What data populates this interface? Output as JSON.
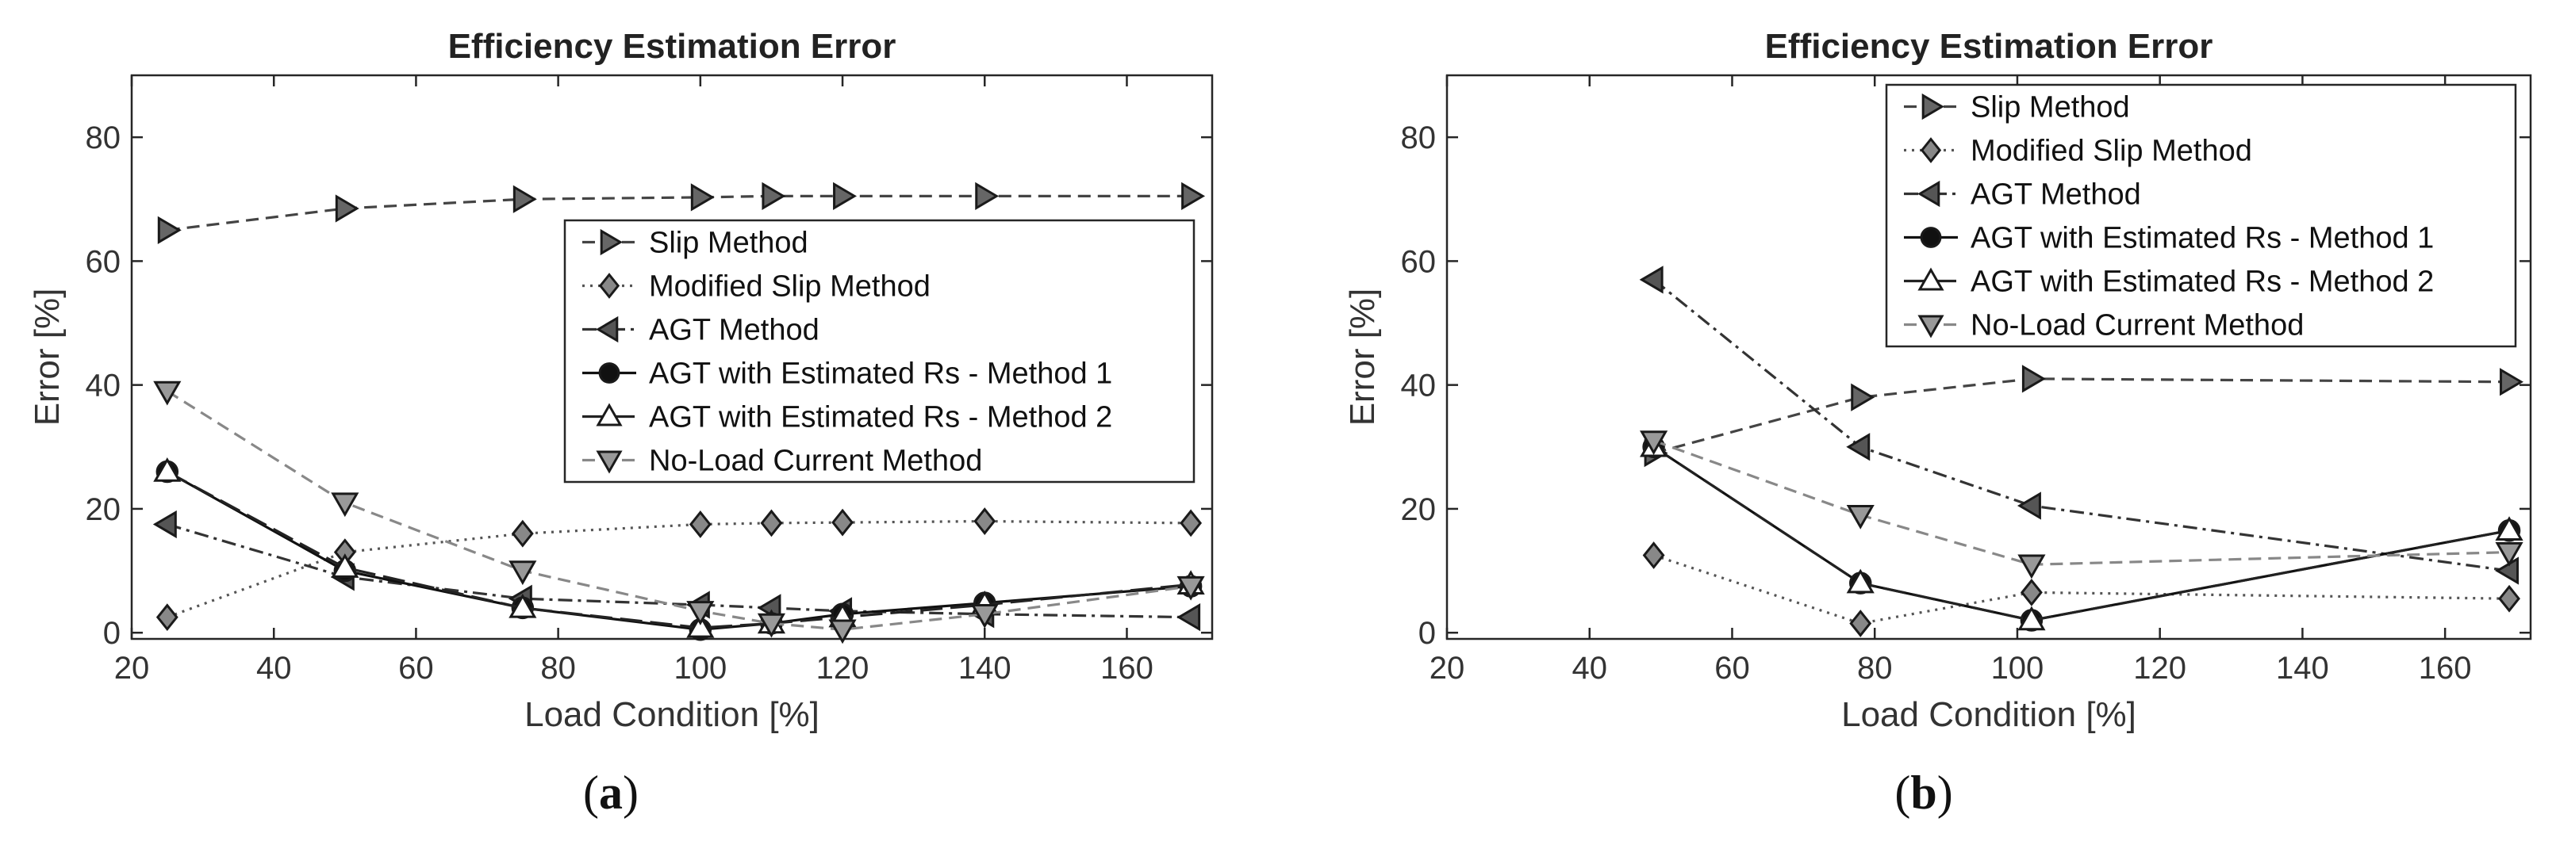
{
  "figure": {
    "captions": [
      "(a)",
      "(b)"
    ]
  },
  "chart_data": [
    {
      "type": "line",
      "title": "Efficiency Estimation Error",
      "xlabel": "Load Condition [%]",
      "ylabel": "Error [%]",
      "xlim": [
        20,
        172
      ],
      "ylim": [
        -1,
        90
      ],
      "xticks": [
        20,
        40,
        60,
        80,
        100,
        120,
        140,
        160
      ],
      "yticks": [
        0,
        20,
        40,
        60,
        80
      ],
      "grid": false,
      "legend_position": "center-right",
      "series": [
        {
          "name": "Slip Method",
          "style": {
            "dash": "dashed",
            "color": "#444444",
            "marker": "triangle-right",
            "marker_fill": "#666666"
          },
          "x": [
            25,
            50,
            75,
            100,
            110,
            120,
            140,
            169
          ],
          "y": [
            65,
            68.5,
            70,
            70.3,
            70.5,
            70.5,
            70.5,
            70.5
          ]
        },
        {
          "name": "Modified Slip Method",
          "style": {
            "dash": "dotted",
            "color": "#555555",
            "marker": "diamond",
            "marker_fill": "#888888"
          },
          "x": [
            25,
            50,
            75,
            100,
            110,
            120,
            140,
            169
          ],
          "y": [
            2.5,
            13,
            16,
            17.5,
            17.7,
            17.8,
            18,
            17.7
          ]
        },
        {
          "name": "AGT Method",
          "style": {
            "dash": "dashdot",
            "color": "#333333",
            "marker": "triangle-left",
            "marker_fill": "#555555"
          },
          "x": [
            25,
            50,
            75,
            100,
            110,
            120,
            140,
            169
          ],
          "y": [
            17.5,
            9,
            5.5,
            4.5,
            4,
            3.5,
            3,
            2.5
          ]
        },
        {
          "name": "AGT with Estimated Rs - Method 1",
          "style": {
            "dash": "solid",
            "color": "#111111",
            "marker": "circle",
            "marker_fill": "#111111"
          },
          "x": [
            25,
            50,
            75,
            100,
            110,
            120,
            140,
            169
          ],
          "y": [
            26,
            10,
            4,
            0.5,
            1.5,
            3,
            4.8,
            7.5
          ]
        },
        {
          "name": "AGT with Estimated Rs - Method 2",
          "style": {
            "dash": "longdash",
            "color": "#222222",
            "marker": "triangle-up",
            "marker_fill": "#ffffff"
          },
          "x": [
            25,
            50,
            75,
            100,
            110,
            120,
            140,
            169
          ],
          "y": [
            26,
            10.5,
            4,
            0.8,
            1.5,
            2.5,
            4.5,
            7.8
          ]
        },
        {
          "name": "No-Load Current Method",
          "style": {
            "dash": "dashed",
            "color": "#888888",
            "marker": "triangle-down",
            "marker_fill": "#999999"
          },
          "x": [
            25,
            50,
            75,
            100,
            110,
            120,
            140,
            169
          ],
          "y": [
            39,
            21,
            10,
            3.5,
            1.5,
            0.5,
            3,
            7.5
          ]
        }
      ]
    },
    {
      "type": "line",
      "title": "Efficiency Estimation Error",
      "xlabel": "Load Condition [%]",
      "ylabel": "Error [%]",
      "xlim": [
        20,
        172
      ],
      "ylim": [
        -1,
        90
      ],
      "xticks": [
        20,
        40,
        60,
        80,
        100,
        120,
        140,
        160
      ],
      "yticks": [
        0,
        20,
        40,
        60,
        80
      ],
      "grid": false,
      "legend_position": "top-right",
      "series": [
        {
          "name": "Slip Method",
          "style": {
            "dash": "dashed",
            "color": "#444444",
            "marker": "triangle-right",
            "marker_fill": "#666666"
          },
          "x": [
            49,
            78,
            102,
            169
          ],
          "y": [
            29,
            38,
            41,
            40.5
          ]
        },
        {
          "name": "Modified Slip Method",
          "style": {
            "dash": "dotted",
            "color": "#555555",
            "marker": "diamond",
            "marker_fill": "#888888"
          },
          "x": [
            49,
            78,
            102,
            169
          ],
          "y": [
            12.5,
            1.5,
            6.5,
            5.5
          ]
        },
        {
          "name": "AGT Method",
          "style": {
            "dash": "dashdot",
            "color": "#333333",
            "marker": "triangle-left",
            "marker_fill": "#555555"
          },
          "x": [
            49,
            78,
            102,
            169
          ],
          "y": [
            57,
            30,
            20.5,
            10
          ]
        },
        {
          "name": "AGT with Estimated Rs - Method 1",
          "style": {
            "dash": "solid",
            "color": "#111111",
            "marker": "circle",
            "marker_fill": "#111111"
          },
          "x": [
            49,
            78,
            102,
            169
          ],
          "y": [
            30,
            8,
            2,
            16.5
          ]
        },
        {
          "name": "AGT with Estimated Rs - Method 2",
          "style": {
            "dash": "longdash",
            "color": "#222222",
            "marker": "triangle-up",
            "marker_fill": "#ffffff"
          },
          "x": [
            49,
            78,
            102,
            169
          ],
          "y": [
            30,
            8,
            2,
            16.5
          ]
        },
        {
          "name": "No-Load Current Method",
          "style": {
            "dash": "dashed",
            "color": "#888888",
            "marker": "triangle-down",
            "marker_fill": "#999999"
          },
          "x": [
            49,
            78,
            102,
            169
          ],
          "y": [
            31,
            19,
            11,
            13
          ]
        }
      ]
    }
  ]
}
